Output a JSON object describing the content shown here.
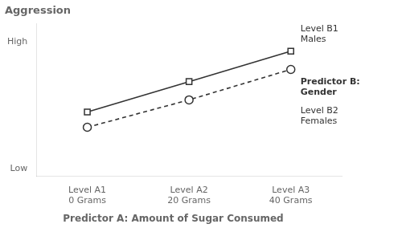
{
  "chart_data": {
    "type": "line",
    "title": "Predictor A: Amount of Sugar Consumed",
    "ylabel": "Aggression",
    "categories": [
      "Level A1\n0 Grams",
      "Level A2\n20 Grams",
      "Level A3\n40 Grams"
    ],
    "series": [
      {
        "values": [
          0.42,
          0.62,
          0.82
        ],
        "color": "#333333",
        "marker": "square",
        "line_style": "solid"
      },
      {
        "values": [
          0.32,
          0.5,
          0.7
        ],
        "color": "#333333",
        "marker": "circle",
        "line_style": "dashed"
      }
    ],
    "ylim": [
      0.0,
      1.0
    ],
    "yticks": [
      {
        "value": 0.05,
        "label": "Low"
      },
      {
        "value": 0.88,
        "label": "High"
      }
    ],
    "grid": false,
    "annotations": [
      "Level B1\nMales",
      "Predictor B:\nGender",
      "Level B2\nFemales"
    ]
  }
}
